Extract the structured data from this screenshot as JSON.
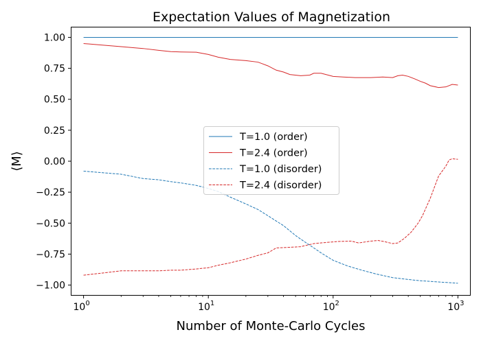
{
  "chart_data": {
    "type": "line",
    "title": "Expectation Values of Magnetization",
    "xlabel": "Number of Monte-Carlo Cycles",
    "ylabel": "⟨M⟩",
    "x_scale": "log",
    "xlim": [
      0.8,
      1250
    ],
    "ylim": [
      -1.08,
      1.08
    ],
    "x_ticks": [
      {
        "value": 1,
        "base": "10",
        "exp": "0"
      },
      {
        "value": 10,
        "base": "10",
        "exp": "1"
      },
      {
        "value": 100,
        "base": "10",
        "exp": "2"
      },
      {
        "value": 1000,
        "base": "10",
        "exp": "3"
      }
    ],
    "y_ticks": [
      {
        "value": 1.0,
        "label": "1.00"
      },
      {
        "value": 0.75,
        "label": "0.75"
      },
      {
        "value": 0.5,
        "label": "0.50"
      },
      {
        "value": 0.25,
        "label": "0.25"
      },
      {
        "value": 0.0,
        "label": "0.00"
      },
      {
        "value": -0.25,
        "label": "−0.25"
      },
      {
        "value": -0.5,
        "label": "−0.50"
      },
      {
        "value": -0.75,
        "label": "−0.75"
      },
      {
        "value": -1.0,
        "label": "−1.00"
      }
    ],
    "grid": false,
    "legend_position": "center",
    "series": [
      {
        "name": "T=1.0 (order)",
        "color": "#1f77b4",
        "style": "solid",
        "points": [
          [
            1,
            1.0
          ],
          [
            10,
            1.0
          ],
          [
            100,
            1.0
          ],
          [
            1000,
            1.0
          ]
        ]
      },
      {
        "name": "T=2.4 (order)",
        "color": "#d62728",
        "style": "solid",
        "points": [
          [
            1,
            0.95
          ],
          [
            1.5,
            0.935
          ],
          [
            2,
            0.925
          ],
          [
            3,
            0.91
          ],
          [
            4,
            0.895
          ],
          [
            5,
            0.885
          ],
          [
            6,
            0.882
          ],
          [
            8,
            0.88
          ],
          [
            10,
            0.862
          ],
          [
            12,
            0.84
          ],
          [
            15,
            0.822
          ],
          [
            20,
            0.812
          ],
          [
            25,
            0.8
          ],
          [
            30,
            0.77
          ],
          [
            35,
            0.735
          ],
          [
            40,
            0.72
          ],
          [
            45,
            0.7
          ],
          [
            55,
            0.69
          ],
          [
            65,
            0.695
          ],
          [
            70,
            0.71
          ],
          [
            80,
            0.71
          ],
          [
            100,
            0.685
          ],
          [
            120,
            0.68
          ],
          [
            150,
            0.675
          ],
          [
            200,
            0.675
          ],
          [
            250,
            0.68
          ],
          [
            300,
            0.675
          ],
          [
            330,
            0.69
          ],
          [
            360,
            0.695
          ],
          [
            400,
            0.685
          ],
          [
            450,
            0.665
          ],
          [
            500,
            0.645
          ],
          [
            550,
            0.63
          ],
          [
            600,
            0.61
          ],
          [
            700,
            0.595
          ],
          [
            800,
            0.6
          ],
          [
            900,
            0.62
          ],
          [
            1000,
            0.615
          ]
        ]
      },
      {
        "name": "T=1.0 (disorder)",
        "color": "#1f77b4",
        "style": "dashed",
        "points": [
          [
            1,
            -0.08
          ],
          [
            1.5,
            -0.095
          ],
          [
            2,
            -0.105
          ],
          [
            3,
            -0.14
          ],
          [
            4,
            -0.15
          ],
          [
            5,
            -0.165
          ],
          [
            6,
            -0.175
          ],
          [
            8,
            -0.195
          ],
          [
            10,
            -0.22
          ],
          [
            12,
            -0.245
          ],
          [
            15,
            -0.29
          ],
          [
            20,
            -0.345
          ],
          [
            25,
            -0.39
          ],
          [
            30,
            -0.44
          ],
          [
            40,
            -0.52
          ],
          [
            50,
            -0.6
          ],
          [
            60,
            -0.655
          ],
          [
            70,
            -0.7
          ],
          [
            80,
            -0.74
          ],
          [
            100,
            -0.8
          ],
          [
            130,
            -0.845
          ],
          [
            170,
            -0.88
          ],
          [
            220,
            -0.91
          ],
          [
            300,
            -0.94
          ],
          [
            400,
            -0.955
          ],
          [
            500,
            -0.965
          ],
          [
            700,
            -0.975
          ],
          [
            1000,
            -0.985
          ]
        ]
      },
      {
        "name": "T=2.4 (disorder)",
        "color": "#d62728",
        "style": "dashed",
        "points": [
          [
            1,
            -0.92
          ],
          [
            1.5,
            -0.9
          ],
          [
            2,
            -0.885
          ],
          [
            3,
            -0.885
          ],
          [
            4,
            -0.885
          ],
          [
            5,
            -0.88
          ],
          [
            6,
            -0.88
          ],
          [
            8,
            -0.87
          ],
          [
            10,
            -0.86
          ],
          [
            12,
            -0.84
          ],
          [
            15,
            -0.82
          ],
          [
            20,
            -0.79
          ],
          [
            25,
            -0.76
          ],
          [
            30,
            -0.74
          ],
          [
            35,
            -0.7
          ],
          [
            45,
            -0.695
          ],
          [
            55,
            -0.69
          ],
          [
            70,
            -0.665
          ],
          [
            90,
            -0.655
          ],
          [
            110,
            -0.648
          ],
          [
            140,
            -0.645
          ],
          [
            160,
            -0.66
          ],
          [
            200,
            -0.645
          ],
          [
            230,
            -0.64
          ],
          [
            260,
            -0.65
          ],
          [
            300,
            -0.665
          ],
          [
            330,
            -0.66
          ],
          [
            370,
            -0.625
          ],
          [
            420,
            -0.575
          ],
          [
            480,
            -0.5
          ],
          [
            520,
            -0.44
          ],
          [
            600,
            -0.3
          ],
          [
            700,
            -0.12
          ],
          [
            800,
            -0.04
          ],
          [
            850,
            0.01
          ],
          [
            900,
            0.02
          ],
          [
            1000,
            0.015
          ]
        ]
      }
    ]
  }
}
